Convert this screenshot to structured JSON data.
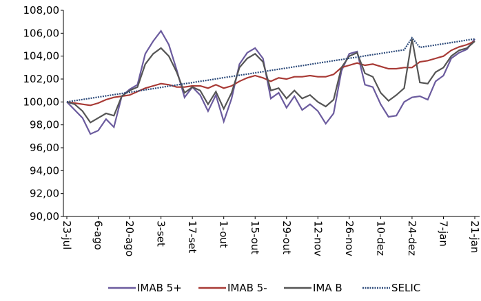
{
  "chart_data": {
    "type": "line",
    "categories": [
      "23-jul",
      null,
      null,
      null,
      "6-ago",
      null,
      null,
      null,
      "20-ago",
      null,
      null,
      null,
      "3-set",
      null,
      null,
      null,
      "17-set",
      null,
      null,
      null,
      "1-out",
      null,
      null,
      null,
      "15-out",
      null,
      null,
      null,
      "29-out",
      null,
      null,
      null,
      "12-nov",
      null,
      null,
      null,
      "26-nov",
      null,
      null,
      null,
      "10-dez",
      null,
      null,
      null,
      "24-dez",
      null,
      null,
      null,
      "7-jan",
      null,
      null,
      null,
      "21-jan"
    ],
    "series": [
      {
        "name": "IMAB 5+",
        "color": "#6b5b9e",
        "dashed": false,
        "values": [
          100,
          99.3,
          98.6,
          97.2,
          97.5,
          98.5,
          97.8,
          100.5,
          101.1,
          101.5,
          104.2,
          105.3,
          106.2,
          105,
          102.8,
          100.4,
          101.3,
          100.6,
          99.2,
          100.6,
          98.3,
          100.3,
          103.3,
          104.3,
          104.7,
          103.8,
          100.3,
          100.8,
          99.5,
          100.5,
          99.3,
          99.8,
          99.2,
          98.1,
          99,
          102.7,
          104.2,
          104.4,
          101.5,
          101.3,
          99.8,
          98.7,
          98.8,
          100,
          100.4,
          100.5,
          100.2,
          101.8,
          102.3,
          103.8,
          104.3,
          104.6,
          105.5
        ]
      },
      {
        "name": "IMAB 5-",
        "color": "#a83a35",
        "dashed": false,
        "values": [
          100,
          99.9,
          99.8,
          99.7,
          99.9,
          100.2,
          100.4,
          100.5,
          100.6,
          100.9,
          101.2,
          101.4,
          101.6,
          101.5,
          101.3,
          101.3,
          101.4,
          101.4,
          101.2,
          101.5,
          101.2,
          101.4,
          101.8,
          102.1,
          102.3,
          102.1,
          101.8,
          102.1,
          102,
          102.2,
          102.2,
          102.3,
          102.2,
          102.2,
          102.4,
          103,
          103.2,
          103.4,
          103.2,
          103.3,
          103.1,
          102.9,
          102.9,
          103,
          103,
          103.5,
          103.6,
          103.8,
          104,
          104.5,
          104.8,
          105,
          105.3
        ]
      },
      {
        "name": "IMA B",
        "color": "#555555",
        "dashed": false,
        "values": [
          100,
          99.8,
          99.2,
          98.2,
          98.6,
          99,
          98.8,
          100.5,
          101,
          101.3,
          103.3,
          104.2,
          104.7,
          104,
          102.6,
          100.8,
          101.3,
          101,
          99.8,
          100.9,
          99.4,
          100.8,
          103,
          103.8,
          104.2,
          103.5,
          101,
          101.2,
          100.3,
          101,
          100.3,
          100.6,
          100,
          99.6,
          100.2,
          103,
          104,
          104.3,
          102.5,
          102.2,
          100.8,
          100.1,
          100.6,
          101.2,
          105.5,
          101.7,
          101.6,
          102.6,
          103,
          104,
          104.5,
          104.7,
          105.3
        ]
      },
      {
        "name": "SELIC",
        "color": "#2c4a7a",
        "dashed": true,
        "values": [
          100,
          100.11,
          100.21,
          100.32,
          100.42,
          100.53,
          100.63,
          100.74,
          100.85,
          100.95,
          101.06,
          101.16,
          101.27,
          101.38,
          101.48,
          101.59,
          101.69,
          101.8,
          101.9,
          102.01,
          102.12,
          102.22,
          102.33,
          102.43,
          102.54,
          102.64,
          102.75,
          102.86,
          102.96,
          103.07,
          103.17,
          103.28,
          103.39,
          103.49,
          103.6,
          103.7,
          103.81,
          103.91,
          104.02,
          104.13,
          104.23,
          104.34,
          104.44,
          104.55,
          105.6,
          104.76,
          104.87,
          104.97,
          105.08,
          105.18,
          105.29,
          105.4,
          105.5
        ]
      }
    ],
    "ylim": [
      90,
      108
    ],
    "yticks": [
      {
        "value": 90,
        "label": "90,00"
      },
      {
        "value": 92,
        "label": "92,00"
      },
      {
        "value": 94,
        "label": "94,00"
      },
      {
        "value": 96,
        "label": "96,00"
      },
      {
        "value": 98,
        "label": "98,00"
      },
      {
        "value": 100,
        "label": "100,00"
      },
      {
        "value": 102,
        "label": "102,00"
      },
      {
        "value": 104,
        "label": "104,00"
      },
      {
        "value": 106,
        "label": "106,00"
      },
      {
        "value": 108,
        "label": "108,00"
      }
    ],
    "grid": false
  }
}
